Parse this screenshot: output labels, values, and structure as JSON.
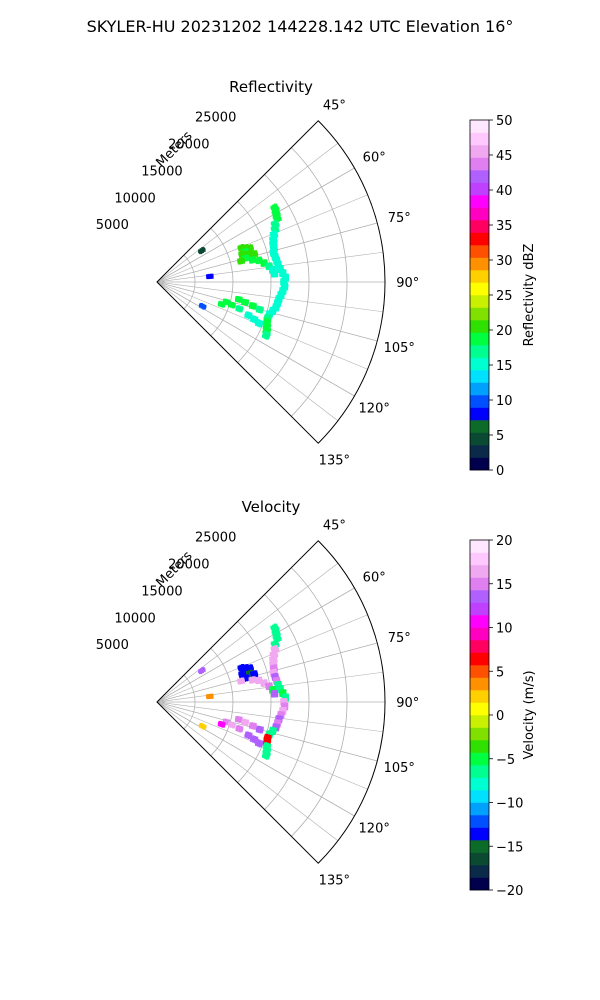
{
  "suptitle": "SKYLER-HU  20231202  144228.142 UTC Elevation 16°",
  "chart_data": [
    {
      "type": "polar-sector",
      "title": "Reflectivity",
      "range_label": "Meters",
      "angle_ticks": [
        "45°",
        "60°",
        "75°",
        "90°",
        "105°",
        "120°",
        "135°"
      ],
      "angle_values": [
        45,
        60,
        75,
        90,
        105,
        120,
        135
      ],
      "range_ticks": [
        "5000",
        "10000",
        "15000",
        "20000",
        "25000"
      ],
      "range_values": [
        5000,
        10000,
        15000,
        20000,
        25000
      ],
      "rmax": 30000,
      "grid": true,
      "colorbar": {
        "label": "Reflectivity dBZ",
        "min": 0,
        "max": 50,
        "ticks": [
          "0",
          "5",
          "10",
          "15",
          "20",
          "25",
          "30",
          "35",
          "40",
          "45",
          "50"
        ],
        "colors": [
          "#00004d",
          "#0b2a4a",
          "#0a4a32",
          "#0d6b2a",
          "#0000ff",
          "#0050ff",
          "#00a0ff",
          "#00e0ff",
          "#00ffd0",
          "#00ff90",
          "#00ff40",
          "#30e000",
          "#80e000",
          "#c8f000",
          "#ffff00",
          "#ffd000",
          "#ff9000",
          "#ff5000",
          "#ff0000",
          "#ff0060",
          "#ff00c0",
          "#ff00ff",
          "#c040ff",
          "#b060ff",
          "#e080f0",
          "#f0a8f0",
          "#ffc8ff",
          "#ffe8ff"
        ]
      },
      "points": [
        {
          "az": 58,
          "r": 18300,
          "v": 18
        },
        {
          "az": 60,
          "r": 18100,
          "v": 18
        },
        {
          "az": 62,
          "r": 17900,
          "v": 18
        },
        {
          "az": 64,
          "r": 17300,
          "v": 17
        },
        {
          "az": 66,
          "r": 17000,
          "v": 17
        },
        {
          "az": 68,
          "r": 16600,
          "v": 16
        },
        {
          "az": 70,
          "r": 16300,
          "v": 16
        },
        {
          "az": 72,
          "r": 16100,
          "v": 16
        },
        {
          "az": 74,
          "r": 16000,
          "v": 15
        },
        {
          "az": 76,
          "r": 15800,
          "v": 16
        },
        {
          "az": 78,
          "r": 15900,
          "v": 15
        },
        {
          "az": 80,
          "r": 16000,
          "v": 16
        },
        {
          "az": 82,
          "r": 16100,
          "v": 15
        },
        {
          "az": 84,
          "r": 16300,
          "v": 16
        },
        {
          "az": 86,
          "r": 16600,
          "v": 15
        },
        {
          "az": 88,
          "r": 16900,
          "v": 16
        },
        {
          "az": 90,
          "r": 16700,
          "v": 15
        },
        {
          "az": 92,
          "r": 16800,
          "v": 16
        },
        {
          "az": 94,
          "r": 16600,
          "v": 15
        },
        {
          "az": 96,
          "r": 16400,
          "v": 16
        },
        {
          "az": 98,
          "r": 16200,
          "v": 15
        },
        {
          "az": 100,
          "r": 16100,
          "v": 16
        },
        {
          "az": 102,
          "r": 16000,
          "v": 15
        },
        {
          "az": 104,
          "r": 15700,
          "v": 16
        },
        {
          "az": 106,
          "r": 15400,
          "v": 16
        },
        {
          "az": 108,
          "r": 15300,
          "v": 17
        },
        {
          "az": 110,
          "r": 15400,
          "v": 18
        },
        {
          "az": 112,
          "r": 15600,
          "v": 19
        },
        {
          "az": 114,
          "r": 15800,
          "v": 18
        },
        {
          "az": 116,
          "r": 16000,
          "v": 17
        },
        {
          "az": 68,
          "r": 12000,
          "v": 20
        },
        {
          "az": 69,
          "r": 12500,
          "v": 21
        },
        {
          "az": 70,
          "r": 13000,
          "v": 20
        },
        {
          "az": 71,
          "r": 12300,
          "v": 19
        },
        {
          "az": 72,
          "r": 11800,
          "v": 20
        },
        {
          "az": 73,
          "r": 12800,
          "v": 21
        },
        {
          "az": 74,
          "r": 13300,
          "v": 20
        },
        {
          "az": 75,
          "r": 12100,
          "v": 19
        },
        {
          "az": 76,
          "r": 11400,
          "v": 20
        },
        {
          "az": 77,
          "r": 12900,
          "v": 18
        },
        {
          "az": 78,
          "r": 13700,
          "v": 19
        },
        {
          "az": 80,
          "r": 14300,
          "v": 18
        },
        {
          "az": 82,
          "r": 14900,
          "v": 17
        },
        {
          "az": 84,
          "r": 15300,
          "v": 16
        },
        {
          "az": 86,
          "r": 15500,
          "v": 16
        },
        {
          "az": 102,
          "r": 11000,
          "v": 18
        },
        {
          "az": 103,
          "r": 11900,
          "v": 19
        },
        {
          "az": 104,
          "r": 13000,
          "v": 18
        },
        {
          "az": 105,
          "r": 14000,
          "v": 17
        },
        {
          "az": 106,
          "r": 9500,
          "v": 19
        },
        {
          "az": 107,
          "r": 10300,
          "v": 18
        },
        {
          "az": 108,
          "r": 11400,
          "v": 17
        },
        {
          "az": 109,
          "r": 9000,
          "v": 18
        },
        {
          "az": 110,
          "r": 12800,
          "v": 16
        },
        {
          "az": 111,
          "r": 13700,
          "v": 16
        },
        {
          "az": 112,
          "r": 14500,
          "v": 15
        },
        {
          "az": 55,
          "r": 7200,
          "v": 5
        },
        {
          "az": 118,
          "r": 6800,
          "v": 10
        },
        {
          "az": 84,
          "r": 7000,
          "v": 8
        }
      ]
    },
    {
      "type": "polar-sector",
      "title": "Velocity",
      "range_label": "Meters",
      "angle_ticks": [
        "45°",
        "60°",
        "75°",
        "90°",
        "105°",
        "120°",
        "135°"
      ],
      "angle_values": [
        45,
        60,
        75,
        90,
        105,
        120,
        135
      ],
      "range_ticks": [
        "5000",
        "10000",
        "15000",
        "20000",
        "25000"
      ],
      "range_values": [
        5000,
        10000,
        15000,
        20000,
        25000
      ],
      "rmax": 30000,
      "grid": true,
      "colorbar": {
        "label": "Velocity (m/s)",
        "min": -20,
        "max": 20,
        "ticks": [
          "−20",
          "−15",
          "−10",
          "−5",
          "0",
          "5",
          "10",
          "15",
          "20"
        ],
        "colors": [
          "#00004d",
          "#0b2a4a",
          "#0a4a32",
          "#0d6b2a",
          "#0000ff",
          "#0050ff",
          "#00a0ff",
          "#00e0ff",
          "#00ffd0",
          "#00ff90",
          "#00ff40",
          "#30e000",
          "#80e000",
          "#c8f000",
          "#ffff00",
          "#ffd000",
          "#ff9000",
          "#ff5000",
          "#ff0000",
          "#ff0060",
          "#ff00c0",
          "#ff00ff",
          "#c040ff",
          "#b060ff",
          "#e080f0",
          "#f0a8f0",
          "#ffc8ff",
          "#ffe8ff"
        ]
      },
      "points": [
        {
          "az": 58,
          "r": 18300,
          "v": -7
        },
        {
          "az": 60,
          "r": 18100,
          "v": -6
        },
        {
          "az": 62,
          "r": 17900,
          "v": -7
        },
        {
          "az": 64,
          "r": 17300,
          "v": -6
        },
        {
          "az": 66,
          "r": 17000,
          "v": 16
        },
        {
          "az": 68,
          "r": 16600,
          "v": 17
        },
        {
          "az": 70,
          "r": 16300,
          "v": 16
        },
        {
          "az": 72,
          "r": 16100,
          "v": 17
        },
        {
          "az": 74,
          "r": 16000,
          "v": 15
        },
        {
          "az": 76,
          "r": 15800,
          "v": 16
        },
        {
          "az": 78,
          "r": 15900,
          "v": 14
        },
        {
          "az": 80,
          "r": 16000,
          "v": 15
        },
        {
          "az": 82,
          "r": 16100,
          "v": -6
        },
        {
          "az": 84,
          "r": 16300,
          "v": -7
        },
        {
          "az": 86,
          "r": 16600,
          "v": -5
        },
        {
          "az": 88,
          "r": 16900,
          "v": -6
        },
        {
          "az": 90,
          "r": 16700,
          "v": 16
        },
        {
          "az": 92,
          "r": 16800,
          "v": 15
        },
        {
          "az": 94,
          "r": 16600,
          "v": 16
        },
        {
          "az": 96,
          "r": 16400,
          "v": 15
        },
        {
          "az": 98,
          "r": 16200,
          "v": 14
        },
        {
          "az": 100,
          "r": 16100,
          "v": 15
        },
        {
          "az": 102,
          "r": 16000,
          "v": 13
        },
        {
          "az": 104,
          "r": 15700,
          "v": -6
        },
        {
          "az": 106,
          "r": 15400,
          "v": -6
        },
        {
          "az": 108,
          "r": 15300,
          "v": 6
        },
        {
          "az": 110,
          "r": 15400,
          "v": 7
        },
        {
          "az": 112,
          "r": 15600,
          "v": -6
        },
        {
          "az": 114,
          "r": 15800,
          "v": -7
        },
        {
          "az": 116,
          "r": 16000,
          "v": -6
        },
        {
          "az": 68,
          "r": 12000,
          "v": -14
        },
        {
          "az": 69,
          "r": 12500,
          "v": -13
        },
        {
          "az": 70,
          "r": 13000,
          "v": -14
        },
        {
          "az": 71,
          "r": 12300,
          "v": -13
        },
        {
          "az": 72,
          "r": 11800,
          "v": -14
        },
        {
          "az": 73,
          "r": 12800,
          "v": -15
        },
        {
          "az": 74,
          "r": 13300,
          "v": -13
        },
        {
          "az": 75,
          "r": 12100,
          "v": -14
        },
        {
          "az": 76,
          "r": 11400,
          "v": 17
        },
        {
          "az": 77,
          "r": 12900,
          "v": 16
        },
        {
          "az": 78,
          "r": 13700,
          "v": 17
        },
        {
          "az": 80,
          "r": 14300,
          "v": 16
        },
        {
          "az": 82,
          "r": 14900,
          "v": 15
        },
        {
          "az": 84,
          "r": 15300,
          "v": -5
        },
        {
          "az": 86,
          "r": 15500,
          "v": 14
        },
        {
          "az": 102,
          "r": 11000,
          "v": 15
        },
        {
          "az": 103,
          "r": 11900,
          "v": 16
        },
        {
          "az": 104,
          "r": 13000,
          "v": 15
        },
        {
          "az": 105,
          "r": 14000,
          "v": 14
        },
        {
          "az": 106,
          "r": 9500,
          "v": 15
        },
        {
          "az": 107,
          "r": 10300,
          "v": 16
        },
        {
          "az": 108,
          "r": 11400,
          "v": 15
        },
        {
          "az": 109,
          "r": 9000,
          "v": 10
        },
        {
          "az": 110,
          "r": 12800,
          "v": 14
        },
        {
          "az": 111,
          "r": 13700,
          "v": 13
        },
        {
          "az": 112,
          "r": 14500,
          "v": 14
        },
        {
          "az": 55,
          "r": 7200,
          "v": 14
        },
        {
          "az": 118,
          "r": 6800,
          "v": 2
        },
        {
          "az": 84,
          "r": 7000,
          "v": 3
        }
      ]
    }
  ]
}
